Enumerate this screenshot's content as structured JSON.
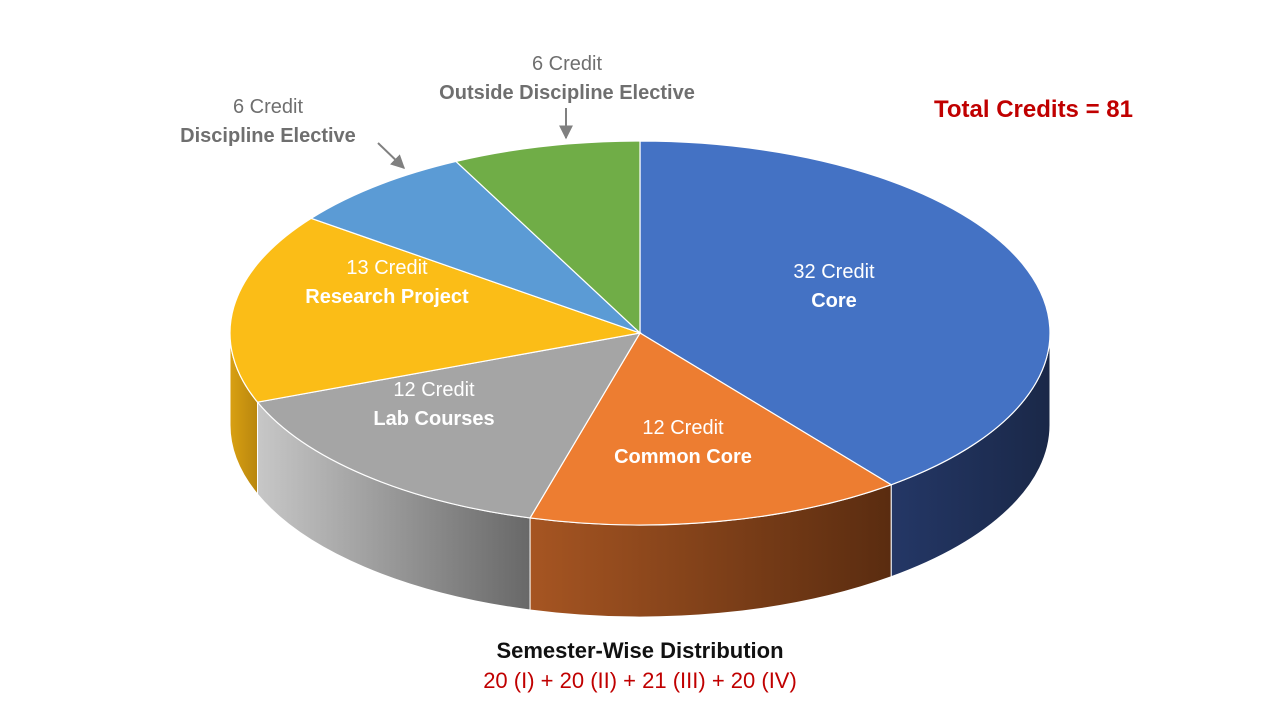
{
  "chart_data": {
    "type": "pie",
    "style": "3d",
    "slices": [
      {
        "credit_label": "32 Credit",
        "name": "Core",
        "value": 32,
        "color": "#4472C4",
        "side_color": "#1E2C50",
        "label_placement": "inside"
      },
      {
        "credit_label": "12 Credit",
        "name": "Common Core",
        "value": 12,
        "color": "#ED7D31",
        "side_color": "#6B3A14",
        "label_placement": "inside"
      },
      {
        "credit_label": "12 Credit",
        "name": "Lab Courses",
        "value": 12,
        "color": "#A5A5A5",
        "side_color": "#7A7A7A",
        "label_placement": "inside"
      },
      {
        "credit_label": "13 Credit",
        "name": "Research Project",
        "value": 13,
        "color": "#FBBD17",
        "side_color": "#B38A10",
        "label_placement": "inside"
      },
      {
        "credit_label": "6 Credit",
        "name": "Discipline Elective",
        "value": 6,
        "color": "#5B9BD5",
        "side_color": "#34597A",
        "label_placement": "outside"
      },
      {
        "credit_label": "6 Credit",
        "name": "Outside Discipline Elective",
        "value": 6,
        "color": "#70AD47",
        "side_color": "#3E6028",
        "label_placement": "outside"
      }
    ]
  },
  "total": {
    "text": "Total Credits = 81",
    "color": "#C00000"
  },
  "footer": {
    "title": "Semester-Wise Distribution",
    "distribution": "20 (I) + 20 (II) + 21 (III) + 20 (IV)",
    "distribution_color": "#C00000"
  }
}
